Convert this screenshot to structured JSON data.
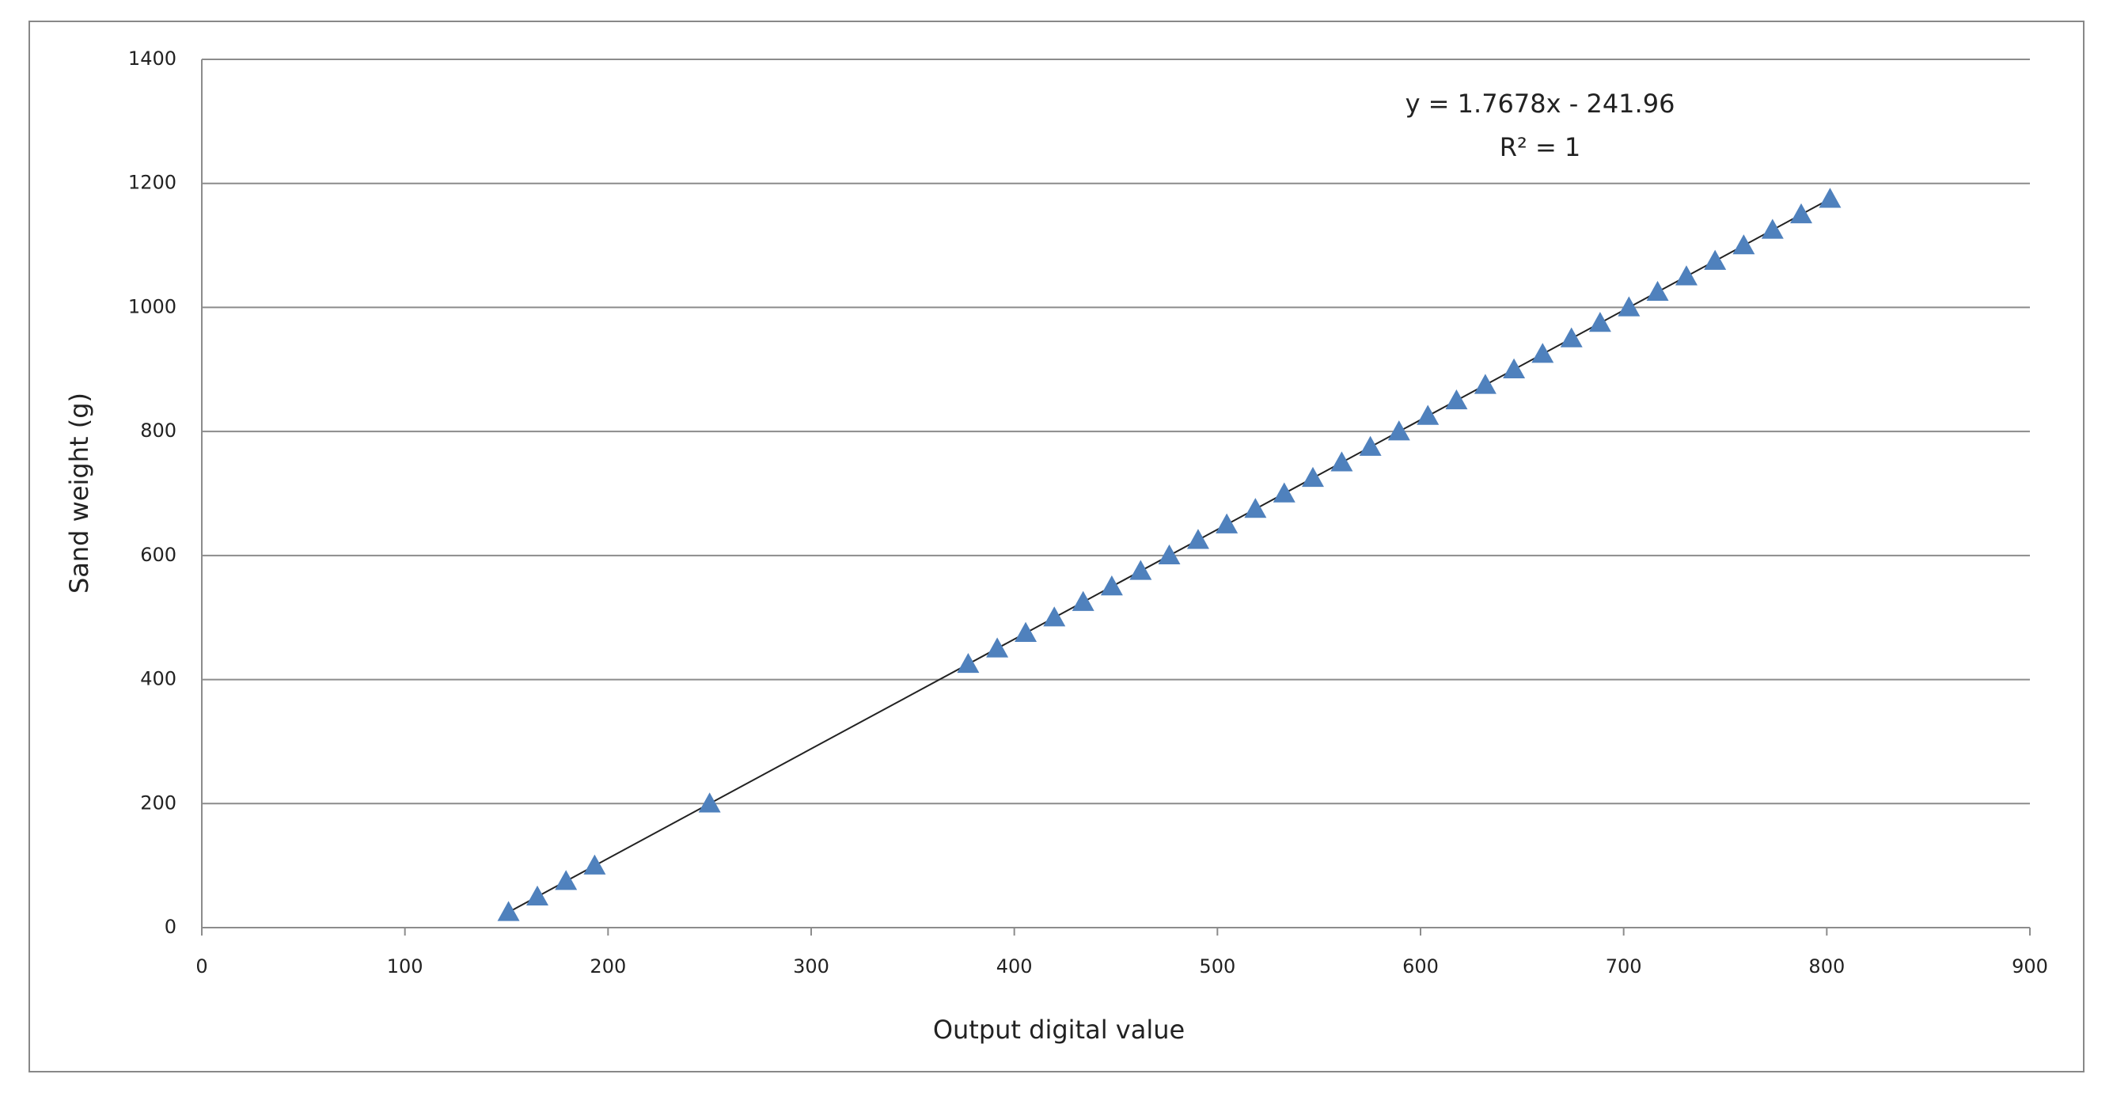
{
  "chart_data": {
    "type": "scatter",
    "x_label": "Output digital value",
    "y_label": "Sand weight (g)",
    "annotations": [
      "y = 1.7678x - 241.96",
      "R² = 1"
    ],
    "trendline": true,
    "marker": "triangle",
    "grid": true,
    "xlim": [
      0,
      900
    ],
    "xticks": [
      0,
      100,
      200,
      300,
      400,
      500,
      600,
      700,
      800,
      900
    ],
    "ylim": [
      0,
      1400
    ],
    "yticks": [
      0,
      200,
      400,
      600,
      800,
      1000,
      1200,
      1400
    ],
    "series": [
      {
        "name": "Sand weight",
        "color": "#4f81bd",
        "x": [
          151.0,
          165.2,
          179.3,
          193.4,
          250.0,
          377.3,
          391.6,
          405.6,
          419.7,
          433.9,
          448.0,
          462.2,
          476.3,
          490.5,
          504.6,
          518.7,
          532.9,
          547.0,
          561.2,
          575.3,
          589.4,
          603.6,
          617.7,
          631.9,
          646.0,
          660.1,
          674.3,
          688.4,
          702.6,
          716.7,
          730.9,
          745.0,
          759.1,
          773.3,
          787.4,
          801.6
        ],
        "values": [
          25,
          50,
          75,
          100,
          200,
          425,
          450,
          475,
          500,
          525,
          550,
          575,
          600,
          625,
          650,
          675,
          700,
          725,
          750,
          775,
          800,
          825,
          850,
          875,
          900,
          925,
          950,
          975,
          1000,
          1025,
          1050,
          1075,
          1100,
          1125,
          1150,
          1175
        ]
      }
    ]
  }
}
